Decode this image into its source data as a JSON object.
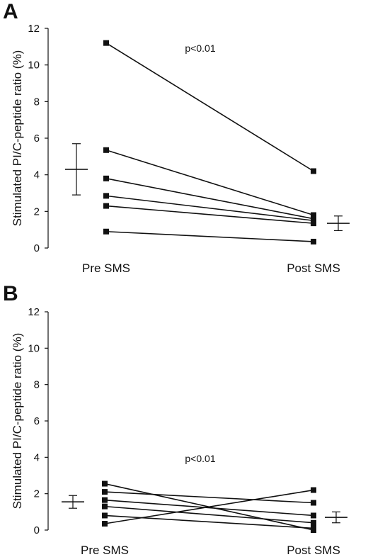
{
  "chart_data": [
    {
      "type": "line",
      "panel_label": "A",
      "ylabel": "Stimulated PI/C-peptide ratio (%)",
      "ylim": [
        0,
        12
      ],
      "yticks": [
        "0",
        "2",
        "4",
        "6",
        "8",
        "10",
        "12"
      ],
      "categories": [
        "Pre SMS",
        "Post SMS"
      ],
      "annotation": "p<0.01",
      "series": [
        {
          "values": [
            11.2,
            4.2
          ]
        },
        {
          "values": [
            5.35,
            1.8
          ]
        },
        {
          "values": [
            3.8,
            1.6
          ]
        },
        {
          "values": [
            2.85,
            1.5
          ]
        },
        {
          "values": [
            2.3,
            1.35
          ]
        },
        {
          "values": [
            0.9,
            0.35
          ]
        }
      ],
      "summary": [
        {
          "category": "Pre SMS",
          "mean": 4.3,
          "low": 2.9,
          "high": 5.7
        },
        {
          "category": "Post SMS",
          "mean": 1.35,
          "low": 0.95,
          "high": 1.75
        }
      ],
      "grid": false,
      "legend": "none"
    },
    {
      "type": "line",
      "panel_label": "B",
      "ylabel": "Stimulated PI/C-peptide ratio (%)",
      "ylim": [
        0,
        12
      ],
      "yticks": [
        "0",
        "2",
        "4",
        "6",
        "8",
        "10",
        "12"
      ],
      "categories": [
        "Pre SMS",
        "Post SMS"
      ],
      "annotation": "p<0.01",
      "series": [
        {
          "values": [
            2.55,
            0.0
          ]
        },
        {
          "values": [
            2.1,
            1.5
          ]
        },
        {
          "values": [
            1.65,
            0.8
          ]
        },
        {
          "values": [
            1.3,
            0.4
          ]
        },
        {
          "values": [
            0.8,
            0.1
          ]
        },
        {
          "values": [
            0.35,
            2.2
          ]
        }
      ],
      "summary": [
        {
          "category": "Pre SMS",
          "mean": 1.55,
          "low": 1.2,
          "high": 1.9
        },
        {
          "category": "Post SMS",
          "mean": 0.7,
          "low": 0.4,
          "high": 1.0
        }
      ],
      "grid": false,
      "legend": "none"
    }
  ]
}
